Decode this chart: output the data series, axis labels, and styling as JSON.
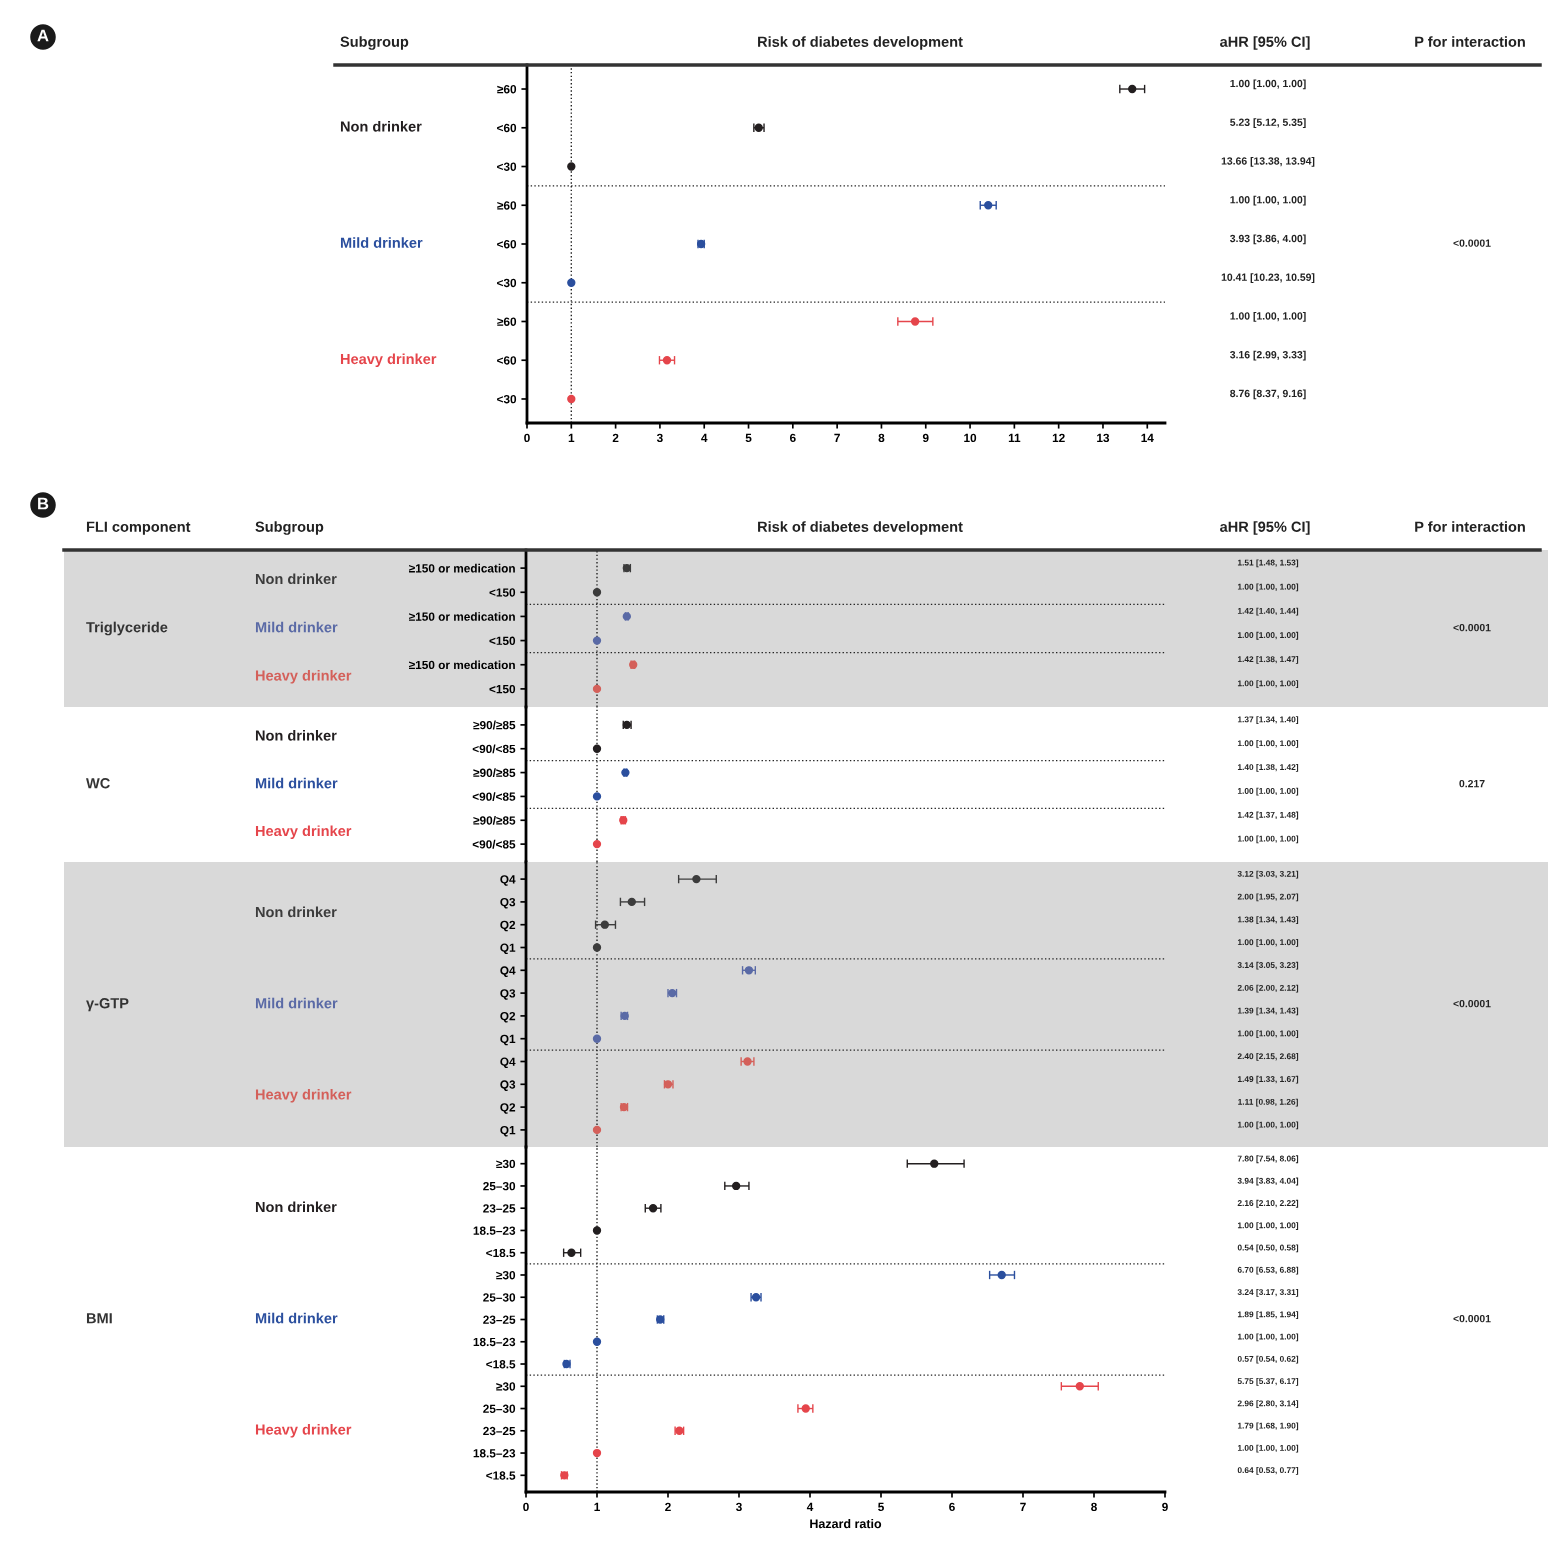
{
  "chart_data": [
    {
      "type": "scatter",
      "orientation": "horizontal",
      "marker": "circle",
      "categories": [
        "≥60",
        "<60",
        "<30",
        "≥60",
        "<60",
        "<30",
        "≥60",
        "<60",
        "<30"
      ],
      "series": [
        {
          "name": "Non drinker",
          "color": "#231f20",
          "values": [
            13.66,
            5.23,
            1.0,
            null,
            null,
            null,
            null,
            null,
            null
          ],
          "errors": [
            [
              13.38,
              13.94
            ],
            [
              5.12,
              5.35
            ],
            null,
            null,
            null,
            null,
            null,
            null,
            null
          ]
        },
        {
          "name": "Mild drinker",
          "color": "#2b4f9e",
          "values": [
            null,
            null,
            null,
            10.41,
            3.93,
            1.0,
            null,
            null,
            null
          ],
          "errors": [
            null,
            null,
            null,
            [
              10.23,
              10.59
            ],
            [
              3.86,
              4.0
            ],
            null,
            null,
            null,
            null
          ]
        },
        {
          "name": "Heavy drinker",
          "color": "#e5454b",
          "values": [
            null,
            null,
            null,
            null,
            null,
            null,
            8.76,
            3.16,
            1.0
          ],
          "errors": [
            null,
            null,
            null,
            null,
            null,
            null,
            [
              8.37,
              9.16
            ],
            [
              2.99,
              3.33
            ],
            null
          ]
        }
      ],
      "xlim": [
        0,
        14.4
      ],
      "xticks": [
        0,
        1,
        2,
        3,
        4,
        5,
        6,
        7,
        8,
        9,
        10,
        11,
        12,
        13,
        14
      ],
      "ref_lines": [
        {
          "axis": "x",
          "value": 1,
          "line_style": "dotted"
        }
      ],
      "annotations": [
        "A",
        "Subgroup",
        "Risk of diabetes development",
        "aHR [95% CI]",
        "P for interaction",
        "1.00 [1.00, 1.00]",
        "5.23 [5.12, 5.35]",
        "13.66 [13.38, 13.94]",
        "1.00 [1.00, 1.00]",
        "3.93 [3.86, 4.00]",
        "10.41 [10.23, 10.59]",
        "1.00 [1.00, 1.00]",
        "3.16 [2.99, 3.33]",
        "8.76 [8.37, 9.16]",
        "<0.0001"
      ]
    },
    {
      "type": "scatter",
      "orientation": "horizontal",
      "marker": "circle",
      "ylabel": "Triglyceride",
      "tick_labels": "y",
      "categories": [
        "≥150 or medication",
        "<150",
        "≥150 or medication",
        "<150",
        "≥150 or medication",
        "<150"
      ],
      "series": [
        {
          "name": "Non drinker",
          "color": "#3c3c3c",
          "values": [
            1.42,
            1.0,
            null,
            null,
            null,
            null
          ],
          "errors": [
            [
              1.38,
              1.47
            ],
            null,
            null,
            null,
            null,
            null
          ]
        },
        {
          "name": "Mild drinker",
          "color": "#5a6aa6",
          "values": [
            null,
            null,
            1.42,
            1.0,
            null,
            null
          ],
          "errors": [
            null,
            null,
            [
              1.4,
              1.44
            ],
            null,
            null,
            null
          ]
        },
        {
          "name": "Heavy drinker",
          "color": "#d4605a",
          "values": [
            null,
            null,
            null,
            null,
            1.51,
            1.0
          ],
          "errors": [
            null,
            null,
            null,
            null,
            [
              1.48,
              1.53
            ],
            null
          ]
        }
      ],
      "xlim": [
        0,
        9
      ],
      "bands": [
        {
          "axis": "x",
          "from": 0,
          "to": 9,
          "color": "#d9d9d9"
        }
      ],
      "ref_lines": [
        {
          "axis": "x",
          "value": 1,
          "line_style": "dotted"
        }
      ],
      "annotations": [
        "B",
        "FLI component",
        "Subgroup",
        "Risk of diabetes development",
        "aHR [95% CI]",
        "P for interaction",
        "1.51 [1.48, 1.53]",
        "1.00 [1.00, 1.00]",
        "1.42 [1.40, 1.44]",
        "1.00 [1.00, 1.00]",
        "1.42 [1.38, 1.47]",
        "1.00 [1.00, 1.00]",
        "<0.0001"
      ]
    },
    {
      "type": "scatter",
      "orientation": "horizontal",
      "marker": "circle",
      "ylabel": "WC",
      "tick_labels": "y",
      "categories": [
        "≥90/≥85",
        "<90/<85",
        "≥90/≥85",
        "<90/<85",
        "≥90/≥85",
        "<90/<85"
      ],
      "series": [
        {
          "name": "Non drinker",
          "color": "#231f20",
          "values": [
            1.42,
            1.0,
            null,
            null,
            null,
            null
          ],
          "errors": [
            [
              1.37,
              1.48
            ],
            null,
            null,
            null,
            null,
            null
          ]
        },
        {
          "name": "Mild drinker",
          "color": "#2b4f9e",
          "values": [
            null,
            null,
            1.4,
            1.0,
            null,
            null
          ],
          "errors": [
            null,
            null,
            [
              1.38,
              1.42
            ],
            null,
            null,
            null
          ]
        },
        {
          "name": "Heavy drinker",
          "color": "#e5454b",
          "values": [
            null,
            null,
            null,
            null,
            1.37,
            1.0
          ],
          "errors": [
            null,
            null,
            null,
            null,
            [
              1.34,
              1.4
            ],
            null
          ]
        }
      ],
      "xlim": [
        0,
        9
      ],
      "ref_lines": [
        {
          "axis": "x",
          "value": 1,
          "line_style": "dotted"
        }
      ],
      "annotations": [
        "1.37 [1.34, 1.40]",
        "1.00 [1.00, 1.00]",
        "1.40 [1.38, 1.42]",
        "1.00 [1.00, 1.00]",
        "1.42 [1.37, 1.48]",
        "1.00 [1.00, 1.00]",
        "0.217"
      ]
    },
    {
      "type": "scatter",
      "orientation": "horizontal",
      "marker": "circle",
      "ylabel": "γ-GTP",
      "tick_labels": "y",
      "categories": [
        "Q4",
        "Q3",
        "Q2",
        "Q1",
        "Q4",
        "Q3",
        "Q2",
        "Q1",
        "Q4",
        "Q3",
        "Q2",
        "Q1"
      ],
      "series": [
        {
          "name": "Non drinker",
          "color": "#3c3c3c",
          "values": [
            2.4,
            1.49,
            1.11,
            1.0,
            null,
            null,
            null,
            null,
            null,
            null,
            null,
            null
          ],
          "errors": [
            [
              2.15,
              2.68
            ],
            [
              1.33,
              1.67
            ],
            [
              0.98,
              1.26
            ],
            null,
            null,
            null,
            null,
            null,
            null,
            null,
            null,
            null
          ]
        },
        {
          "name": "Mild drinker",
          "color": "#5a6aa6",
          "values": [
            null,
            null,
            null,
            null,
            3.14,
            2.06,
            1.39,
            1.0,
            null,
            null,
            null,
            null
          ],
          "errors": [
            null,
            null,
            null,
            null,
            [
              3.05,
              3.23
            ],
            [
              2.0,
              2.12
            ],
            [
              1.34,
              1.43
            ],
            null,
            null,
            null,
            null,
            null
          ]
        },
        {
          "name": "Heavy drinker",
          "color": "#d4605a",
          "values": [
            null,
            null,
            null,
            null,
            null,
            null,
            null,
            null,
            3.12,
            2.0,
            1.38,
            1.0
          ],
          "errors": [
            null,
            null,
            null,
            null,
            null,
            null,
            null,
            null,
            [
              3.03,
              3.21
            ],
            [
              1.95,
              2.07
            ],
            [
              1.34,
              1.43
            ],
            null
          ]
        }
      ],
      "xlim": [
        0,
        9
      ],
      "bands": [
        {
          "axis": "x",
          "from": 0,
          "to": 9,
          "color": "#d9d9d9"
        }
      ],
      "ref_lines": [
        {
          "axis": "x",
          "value": 1,
          "line_style": "dotted"
        }
      ],
      "annotations": [
        "3.12 [3.03, 3.21]",
        "2.00 [1.95, 2.07]",
        "1.38 [1.34, 1.43]",
        "1.00 [1.00, 1.00]",
        "3.14 [3.05, 3.23]",
        "2.06 [2.00, 2.12]",
        "1.39 [1.34, 1.43]",
        "1.00 [1.00, 1.00]",
        "2.40 [2.15, 2.68]",
        "1.49 [1.33, 1.67]",
        "1.11 [0.98, 1.26]",
        "1.00 [1.00, 1.00]",
        "<0.0001"
      ]
    },
    {
      "type": "scatter",
      "orientation": "horizontal",
      "marker": "circle",
      "ylabel": "BMI",
      "xlabel": "Hazard ratio",
      "categories": [
        "≥30",
        "25–30",
        "23–25",
        "18.5–23",
        "<18.5",
        "≥30",
        "25–30",
        "23–25",
        "18.5–23",
        "<18.5",
        "≥30",
        "25–30",
        "23–25",
        "18.5–23",
        "<18.5"
      ],
      "series": [
        {
          "name": "Non drinker",
          "color": "#231f20",
          "values": [
            5.75,
            2.96,
            1.79,
            1.0,
            0.64,
            null,
            null,
            null,
            null,
            null,
            null,
            null,
            null,
            null,
            null
          ],
          "errors": [
            [
              5.37,
              6.17
            ],
            [
              2.8,
              3.14
            ],
            [
              1.68,
              1.9
            ],
            null,
            [
              0.53,
              0.77
            ],
            null,
            null,
            null,
            null,
            null,
            null,
            null,
            null,
            null,
            null
          ]
        },
        {
          "name": "Mild drinker",
          "color": "#2b4f9e",
          "values": [
            null,
            null,
            null,
            null,
            null,
            6.7,
            3.24,
            1.89,
            1.0,
            0.57,
            null,
            null,
            null,
            null,
            null
          ],
          "errors": [
            null,
            null,
            null,
            null,
            null,
            [
              6.53,
              6.88
            ],
            [
              3.17,
              3.31
            ],
            [
              1.85,
              1.94
            ],
            null,
            [
              0.54,
              0.62
            ],
            null,
            null,
            null,
            null,
            null
          ]
        },
        {
          "name": "Heavy drinker",
          "color": "#e5454b",
          "values": [
            null,
            null,
            null,
            null,
            null,
            null,
            null,
            null,
            null,
            null,
            7.8,
            3.94,
            2.16,
            1.0,
            0.54
          ],
          "errors": [
            null,
            null,
            null,
            null,
            null,
            null,
            null,
            null,
            null,
            null,
            [
              7.54,
              8.06
            ],
            [
              3.83,
              4.04
            ],
            [
              2.1,
              2.22
            ],
            null,
            [
              0.5,
              0.58
            ]
          ]
        }
      ],
      "xlim": [
        0,
        9
      ],
      "xticks": [
        0,
        1,
        2,
        3,
        4,
        5,
        6,
        7,
        8,
        9
      ],
      "ref_lines": [
        {
          "axis": "x",
          "value": 1,
          "line_style": "dotted"
        }
      ],
      "annotations": [
        "7.80 [7.54, 8.06]",
        "3.94 [3.83, 4.04]",
        "2.16 [2.10, 2.22]",
        "1.00 [1.00, 1.00]",
        "0.54 [0.50, 0.58]",
        "6.70 [6.53, 6.88]",
        "3.24 [3.17, 3.31]",
        "1.89 [1.85, 1.94]",
        "1.00 [1.00, 1.00]",
        "0.57 [0.54, 0.62]",
        "5.75 [5.37, 6.17]",
        "2.96 [2.80, 3.14]",
        "1.79 [1.68, 1.90]",
        "1.00 [1.00, 1.00]",
        "0.64 [0.53, 0.77]",
        "<0.0001"
      ]
    }
  ]
}
